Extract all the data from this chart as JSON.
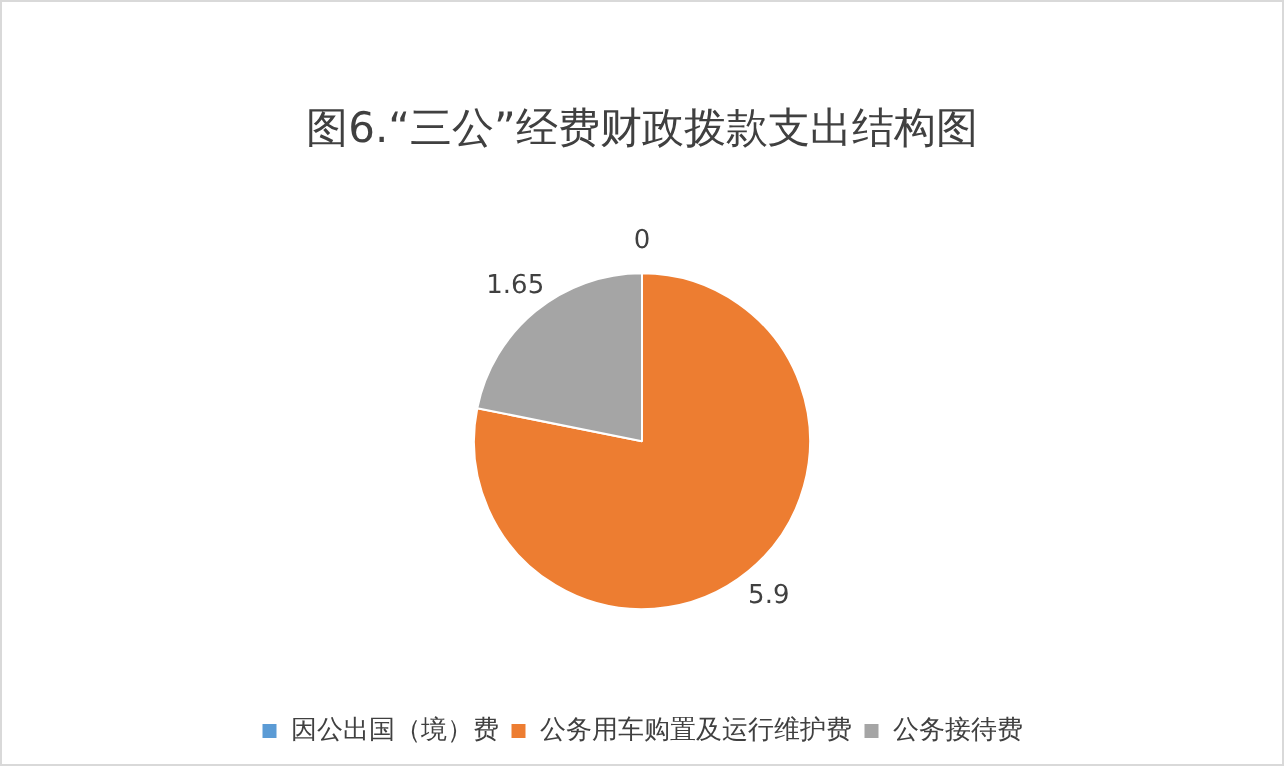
{
  "chart_data": {
    "type": "pie",
    "title": "图6.“三公”经费财政拨款支出结构图",
    "categories": [
      "因公出国（境）费",
      "公务用车购置及运行维护费",
      "公务接待费"
    ],
    "values": [
      0,
      5.9,
      1.65
    ],
    "colors": [
      "#5b9bd5",
      "#ed7d31",
      "#a5a5a5"
    ],
    "value_labels": [
      "0",
      "5.9",
      "1.65"
    ],
    "legend": "bottom"
  }
}
